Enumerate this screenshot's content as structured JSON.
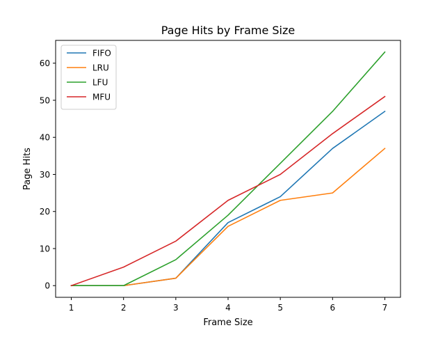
{
  "chart_data": {
    "type": "line",
    "title": "Page Hits by Frame Size",
    "xlabel": "Frame Size",
    "ylabel": "Page Hits",
    "x": [
      1,
      2,
      3,
      4,
      5,
      6,
      7
    ],
    "xlim": [
      0.7,
      7.3
    ],
    "ylim": [
      -3.15,
      66.15
    ],
    "xticks": [
      1,
      2,
      3,
      4,
      5,
      6,
      7
    ],
    "yticks": [
      0,
      10,
      20,
      30,
      40,
      50,
      60
    ],
    "grid": false,
    "legend": "upper-left",
    "series": [
      {
        "name": "FIFO",
        "color": "#1f77b4",
        "values": [
          0,
          0,
          2,
          17,
          24,
          37,
          47
        ]
      },
      {
        "name": "LRU",
        "color": "#ff7f0e",
        "values": [
          0,
          0,
          2,
          16,
          23,
          25,
          37
        ]
      },
      {
        "name": "LFU",
        "color": "#2ca02c",
        "values": [
          0,
          0,
          7,
          19,
          33,
          47,
          63
        ]
      },
      {
        "name": "MFU",
        "color": "#d62728",
        "values": [
          0,
          5,
          12,
          23,
          30,
          41,
          51
        ]
      }
    ]
  }
}
